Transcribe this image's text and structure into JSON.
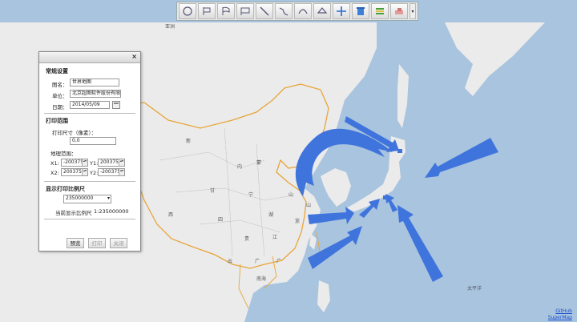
{
  "toolbar": {
    "tools": [
      {
        "name": "reset-view-icon"
      },
      {
        "name": "flag-icon"
      },
      {
        "name": "flag-wave-icon"
      },
      {
        "name": "flag-double-icon"
      },
      {
        "name": "line-draw-icon"
      },
      {
        "name": "polyline-draw-icon"
      },
      {
        "name": "curve-draw-icon"
      },
      {
        "name": "polygon-draw-icon"
      },
      {
        "name": "move-icon"
      },
      {
        "name": "delete-icon"
      },
      {
        "name": "layers-icon"
      },
      {
        "name": "eraser-icon"
      }
    ],
    "dropdown_arrow": "▾"
  },
  "map": {
    "labels": {
      "asia": "亚洲",
      "pacific": "太平洋"
    },
    "sea_color": "#a9c4de",
    "land_color": "#ebebeb",
    "border_color": "#e8a53a",
    "arrow_color": "#3f74dc"
  },
  "panel": {
    "close_label": "×",
    "general_title": "常规设置",
    "map_name_label": "图名：",
    "map_name_value": "世界地图",
    "unit_label": "单位：",
    "unit_value": "北京超图软件股份有限公",
    "date_label": "日期：",
    "date_value": "2014/05/09",
    "print_range_title": "打印范围",
    "print_size_label": "打印尺寸（像素）：",
    "print_size_value": "0,0",
    "geo_range_label": "地理范围：",
    "x1_label": "X1:",
    "x1_value": "-200375",
    "y1_label": "Y1:",
    "y1_value": "200375",
    "x2_label": "X2:",
    "x2_value": "200375",
    "y2_label": "Y2:",
    "y2_value": "-200375",
    "scale_title": "显示打印比例尺",
    "scale_value": "235000000",
    "current_scale_label": "当前显示比例尺",
    "current_scale_value": "1:235000000",
    "btn_preview": "预览",
    "btn_print": "打印",
    "btn_close": "关闭"
  },
  "credits": {
    "line1": "GitHub",
    "line2": "SuperMap"
  }
}
